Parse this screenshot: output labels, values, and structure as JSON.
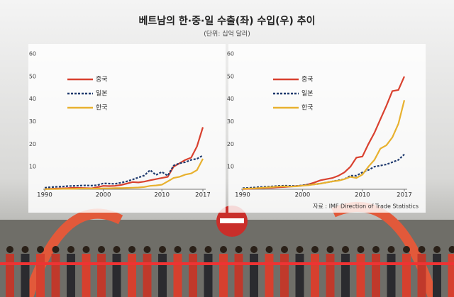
{
  "header": {
    "title": "베트남의 한·중·일 수출(좌) 수입(우) 추이",
    "subtitle": "(단위: 십억 달러)"
  },
  "source": "자료 : IMF Direction of Trade Statistics",
  "chart_data": [
    {
      "type": "line",
      "x": [
        1990,
        1991,
        1992,
        1993,
        1994,
        1995,
        1996,
        1997,
        1998,
        1999,
        2000,
        2001,
        2002,
        2003,
        2004,
        2005,
        2006,
        2007,
        2008,
        2009,
        2010,
        2011,
        2012,
        2013,
        2014,
        2015,
        2016,
        2017
      ],
      "xlim": [
        1990,
        2017
      ],
      "xticks": [
        1990,
        2000,
        2010,
        2017
      ],
      "ylim": [
        0,
        60
      ],
      "yticks": [
        10,
        20,
        30,
        40,
        50,
        60
      ],
      "series": [
        {
          "name": "중국",
          "color": "#d9412f",
          "values": [
            0.1,
            0.2,
            0.3,
            0.4,
            0.5,
            0.7,
            0.6,
            0.5,
            0.4,
            0.9,
            1.5,
            1.4,
            1.5,
            1.9,
            2.5,
            3.2,
            3.0,
            3.4,
            4.0,
            4.5,
            5.0,
            5.5,
            10.0,
            11.5,
            13.0,
            14.0,
            19.0,
            27.5
          ]
        },
        {
          "name": "일본",
          "color": "#1f3a6e",
          "dashed": true,
          "values": [
            0.7,
            0.9,
            1.1,
            1.2,
            1.4,
            1.5,
            1.6,
            1.7,
            1.6,
            1.8,
            2.6,
            2.5,
            2.4,
            2.9,
            3.5,
            4.3,
            5.2,
            6.1,
            8.5,
            6.3,
            7.7,
            6.0,
            10.5,
            11.5,
            12.0,
            13.0,
            13.5,
            15.0
          ]
        },
        {
          "name": "한국",
          "color": "#e8b12f",
          "values": [
            0.1,
            0.1,
            0.1,
            0.2,
            0.2,
            0.2,
            0.3,
            0.3,
            0.3,
            0.3,
            0.4,
            0.4,
            0.5,
            0.5,
            0.6,
            0.7,
            0.8,
            1.0,
            1.5,
            1.7,
            2.0,
            3.5,
            5.0,
            5.5,
            6.5,
            7.0,
            8.5,
            13.5
          ]
        }
      ]
    },
    {
      "type": "line",
      "x": [
        1990,
        1991,
        1992,
        1993,
        1994,
        1995,
        1996,
        1997,
        1998,
        1999,
        2000,
        2001,
        2002,
        2003,
        2004,
        2005,
        2006,
        2007,
        2008,
        2009,
        2010,
        2011,
        2012,
        2013,
        2014,
        2015,
        2016,
        2017
      ],
      "xlim": [
        1990,
        2017
      ],
      "xticks": [
        1990,
        2000,
        2010,
        2017
      ],
      "ylim": [
        0,
        60
      ],
      "yticks": [
        10,
        20,
        30,
        40,
        50,
        60
      ],
      "series": [
        {
          "name": "중국",
          "color": "#d9412f",
          "values": [
            0.1,
            0.2,
            0.3,
            0.4,
            0.6,
            0.7,
            0.9,
            1.0,
            1.2,
            1.4,
            1.6,
            2.2,
            3.0,
            4.0,
            4.5,
            5.0,
            6.0,
            7.5,
            10.0,
            14.0,
            14.5,
            20.0,
            25.0,
            31.0,
            37.0,
            43.5,
            44.0,
            50.0
          ]
        },
        {
          "name": "일본",
          "color": "#1f3a6e",
          "dashed": true,
          "values": [
            0.5,
            0.6,
            0.8,
            1.0,
            1.1,
            1.3,
            1.5,
            1.6,
            1.5,
            1.4,
            1.8,
            2.0,
            2.2,
            2.5,
            3.0,
            3.5,
            4.0,
            4.5,
            6.0,
            6.0,
            7.5,
            8.5,
            10.0,
            10.5,
            11.0,
            12.0,
            13.0,
            15.5
          ]
        },
        {
          "name": "한국",
          "color": "#e8b12f",
          "values": [
            0.2,
            0.3,
            0.4,
            0.6,
            0.8,
            1.0,
            1.2,
            1.3,
            1.2,
            1.3,
            1.6,
            1.8,
            2.2,
            2.5,
            3.0,
            3.5,
            3.8,
            4.5,
            5.5,
            5.0,
            6.5,
            10.0,
            13.0,
            18.0,
            19.5,
            23.0,
            29.0,
            39.5
          ]
        }
      ]
    }
  ]
}
